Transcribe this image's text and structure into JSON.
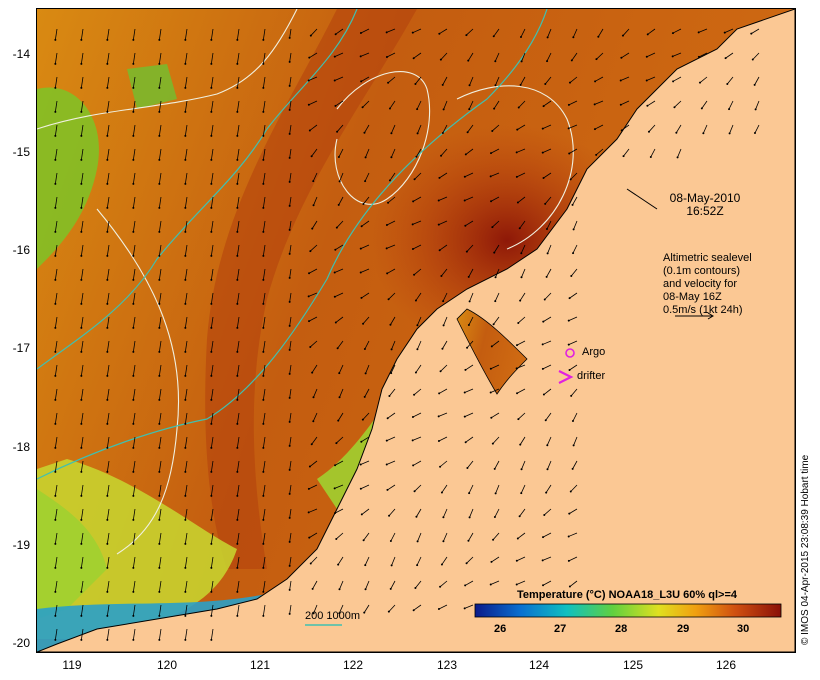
{
  "map": {
    "title_date": "08-May-2010",
    "title_time": "16:52Z",
    "legend_text": [
      "Altimetric sealevel",
      "(0.1m contours)",
      "and velocity for",
      "08-May 16Z",
      "0.5m/s (1kt 24h)"
    ],
    "argo_label": "Argo",
    "drifter_label": "drifter",
    "bathymetry_label": "200  1000m",
    "colorbar_title": "Temperature (°C) NOAA18_L3U 60% ql>=4",
    "colorbar_ticks": [
      "26",
      "27",
      "28",
      "29",
      "30"
    ],
    "copyright": "© IMOS 04-Apr-2015 23:08:39 Hobart time",
    "lat_ticks": [
      "-14",
      "-15",
      "-16",
      "-17",
      "-18",
      "-19",
      "-20"
    ],
    "lon_ticks": [
      "119",
      "120",
      "121",
      "122",
      "123",
      "124",
      "125",
      "126"
    ],
    "colors": {
      "land": "#fbc894",
      "warm": "#a8210a",
      "mid": "#e08a10",
      "cool": "#7dd12a",
      "cold": "#1e90c8",
      "bathy": "#40c0b0",
      "argo": "#e020e0"
    }
  }
}
